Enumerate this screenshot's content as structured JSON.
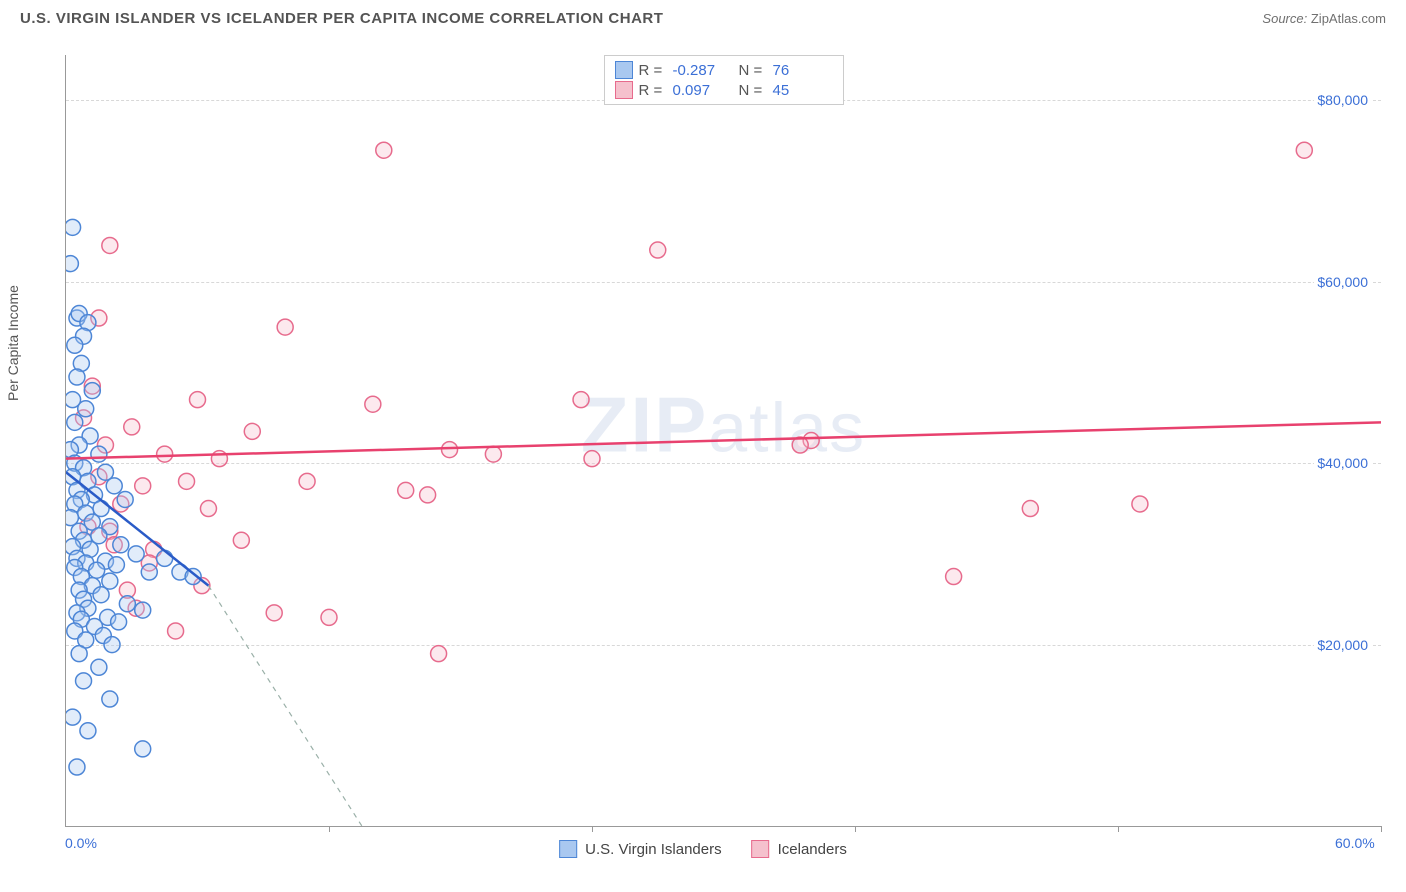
{
  "header": {
    "title": "U.S. VIRGIN ISLANDER VS ICELANDER PER CAPITA INCOME CORRELATION CHART",
    "source_label": "Source:",
    "source_value": "ZipAtlas.com"
  },
  "watermark": {
    "zip": "ZIP",
    "atlas": "atlas"
  },
  "chart": {
    "type": "scatter",
    "ylabel": "Per Capita Income",
    "xlim": [
      0,
      60
    ],
    "ylim": [
      0,
      85000
    ],
    "x_min_label": "0.0%",
    "x_max_label": "60.0%",
    "xtick_positions": [
      12,
      24,
      36,
      48,
      60
    ],
    "yticks": [
      {
        "value": 20000,
        "label": "$20,000"
      },
      {
        "value": 40000,
        "label": "$40,000"
      },
      {
        "value": 60000,
        "label": "$60,000"
      },
      {
        "value": 80000,
        "label": "$80,000"
      }
    ],
    "grid_color": "#d8d8d8",
    "background_color": "#ffffff",
    "marker_radius": 8,
    "marker_fill_opacity": 0.35,
    "marker_stroke_width": 1.5,
    "series": [
      {
        "id": "usvi",
        "label": "U.S. Virgin Islanders",
        "color_fill": "#a9c8f0",
        "color_stroke": "#4d86d6",
        "r_value": "-0.287",
        "n_value": "76",
        "trend": {
          "x1": 0,
          "y1": 39000,
          "x2": 6.5,
          "y2": 26500,
          "dash_x2": 13.5,
          "dash_y2": 0,
          "color": "#2a5bc7",
          "width": 2.5,
          "dash_color": "#9ab0a8"
        },
        "points": [
          [
            0.2,
            62000
          ],
          [
            0.3,
            66000
          ],
          [
            0.5,
            56000
          ],
          [
            0.6,
            56500
          ],
          [
            1.0,
            55500
          ],
          [
            0.8,
            54000
          ],
          [
            0.4,
            53000
          ],
          [
            0.7,
            51000
          ],
          [
            0.5,
            49500
          ],
          [
            1.2,
            48000
          ],
          [
            0.3,
            47000
          ],
          [
            0.9,
            46000
          ],
          [
            0.4,
            44500
          ],
          [
            1.1,
            43000
          ],
          [
            0.6,
            42000
          ],
          [
            0.2,
            41500
          ],
          [
            1.5,
            41000
          ],
          [
            0.4,
            40000
          ],
          [
            0.8,
            39500
          ],
          [
            1.8,
            39000
          ],
          [
            0.3,
            38500
          ],
          [
            1.0,
            38000
          ],
          [
            2.2,
            37500
          ],
          [
            0.5,
            37000
          ],
          [
            1.3,
            36500
          ],
          [
            0.7,
            36000
          ],
          [
            2.7,
            36000
          ],
          [
            0.4,
            35500
          ],
          [
            1.6,
            35000
          ],
          [
            0.9,
            34500
          ],
          [
            0.2,
            34000
          ],
          [
            1.2,
            33500
          ],
          [
            2.0,
            33000
          ],
          [
            0.6,
            32500
          ],
          [
            1.5,
            32000
          ],
          [
            0.8,
            31500
          ],
          [
            2.5,
            31000
          ],
          [
            0.3,
            30800
          ],
          [
            1.1,
            30500
          ],
          [
            3.2,
            30000
          ],
          [
            0.5,
            29500
          ],
          [
            1.8,
            29200
          ],
          [
            0.9,
            29000
          ],
          [
            2.3,
            28800
          ],
          [
            0.4,
            28500
          ],
          [
            1.4,
            28200
          ],
          [
            3.8,
            28000
          ],
          [
            0.7,
            27500
          ],
          [
            2.0,
            27000
          ],
          [
            1.2,
            26500
          ],
          [
            4.5,
            29500
          ],
          [
            0.6,
            26000
          ],
          [
            1.6,
            25500
          ],
          [
            5.2,
            28000
          ],
          [
            0.8,
            25000
          ],
          [
            2.8,
            24500
          ],
          [
            5.8,
            27500
          ],
          [
            1.0,
            24000
          ],
          [
            3.5,
            23800
          ],
          [
            0.5,
            23500
          ],
          [
            1.9,
            23000
          ],
          [
            0.7,
            22800
          ],
          [
            2.4,
            22500
          ],
          [
            1.3,
            22000
          ],
          [
            0.4,
            21500
          ],
          [
            1.7,
            21000
          ],
          [
            0.9,
            20500
          ],
          [
            2.1,
            20000
          ],
          [
            0.6,
            19000
          ],
          [
            1.5,
            17500
          ],
          [
            0.8,
            16000
          ],
          [
            2.0,
            14000
          ],
          [
            3.5,
            8500
          ],
          [
            0.5,
            6500
          ],
          [
            1.0,
            10500
          ],
          [
            0.3,
            12000
          ]
        ]
      },
      {
        "id": "iceland",
        "label": "Icelanders",
        "color_fill": "#f5c1cd",
        "color_stroke": "#e76b8d",
        "r_value": "0.097",
        "n_value": "45",
        "trend": {
          "x1": 0,
          "y1": 40500,
          "x2": 60,
          "y2": 44500,
          "color": "#e8416e",
          "width": 2.5
        },
        "points": [
          [
            2.0,
            64000
          ],
          [
            14.5,
            74500
          ],
          [
            56.5,
            74500
          ],
          [
            27.0,
            63500
          ],
          [
            1.5,
            56000
          ],
          [
            10.0,
            55000
          ],
          [
            6.0,
            47000
          ],
          [
            14.0,
            46500
          ],
          [
            23.5,
            47000
          ],
          [
            1.2,
            48500
          ],
          [
            3.0,
            44000
          ],
          [
            8.5,
            43500
          ],
          [
            17.5,
            41500
          ],
          [
            19.5,
            41000
          ],
          [
            24.0,
            40500
          ],
          [
            34.0,
            42500
          ],
          [
            33.5,
            42000
          ],
          [
            1.8,
            42000
          ],
          [
            4.5,
            41000
          ],
          [
            7.0,
            40500
          ],
          [
            3.5,
            37500
          ],
          [
            5.5,
            38000
          ],
          [
            11.0,
            38000
          ],
          [
            15.5,
            37000
          ],
          [
            16.5,
            36500
          ],
          [
            2.5,
            35500
          ],
          [
            6.5,
            35000
          ],
          [
            49.0,
            35500
          ],
          [
            44.0,
            35000
          ],
          [
            40.5,
            27500
          ],
          [
            2.0,
            32500
          ],
          [
            8.0,
            31500
          ],
          [
            4.0,
            30500
          ],
          [
            9.5,
            23500
          ],
          [
            12.0,
            23000
          ],
          [
            17.0,
            19000
          ],
          [
            5.0,
            21500
          ],
          [
            2.8,
            26000
          ],
          [
            6.2,
            26500
          ],
          [
            3.8,
            29000
          ],
          [
            1.0,
            33000
          ],
          [
            0.8,
            45000
          ],
          [
            1.5,
            38500
          ],
          [
            2.2,
            31000
          ],
          [
            3.2,
            24000
          ]
        ]
      }
    ],
    "legend_top": {
      "r_label": "R =",
      "n_label": "N ="
    }
  }
}
